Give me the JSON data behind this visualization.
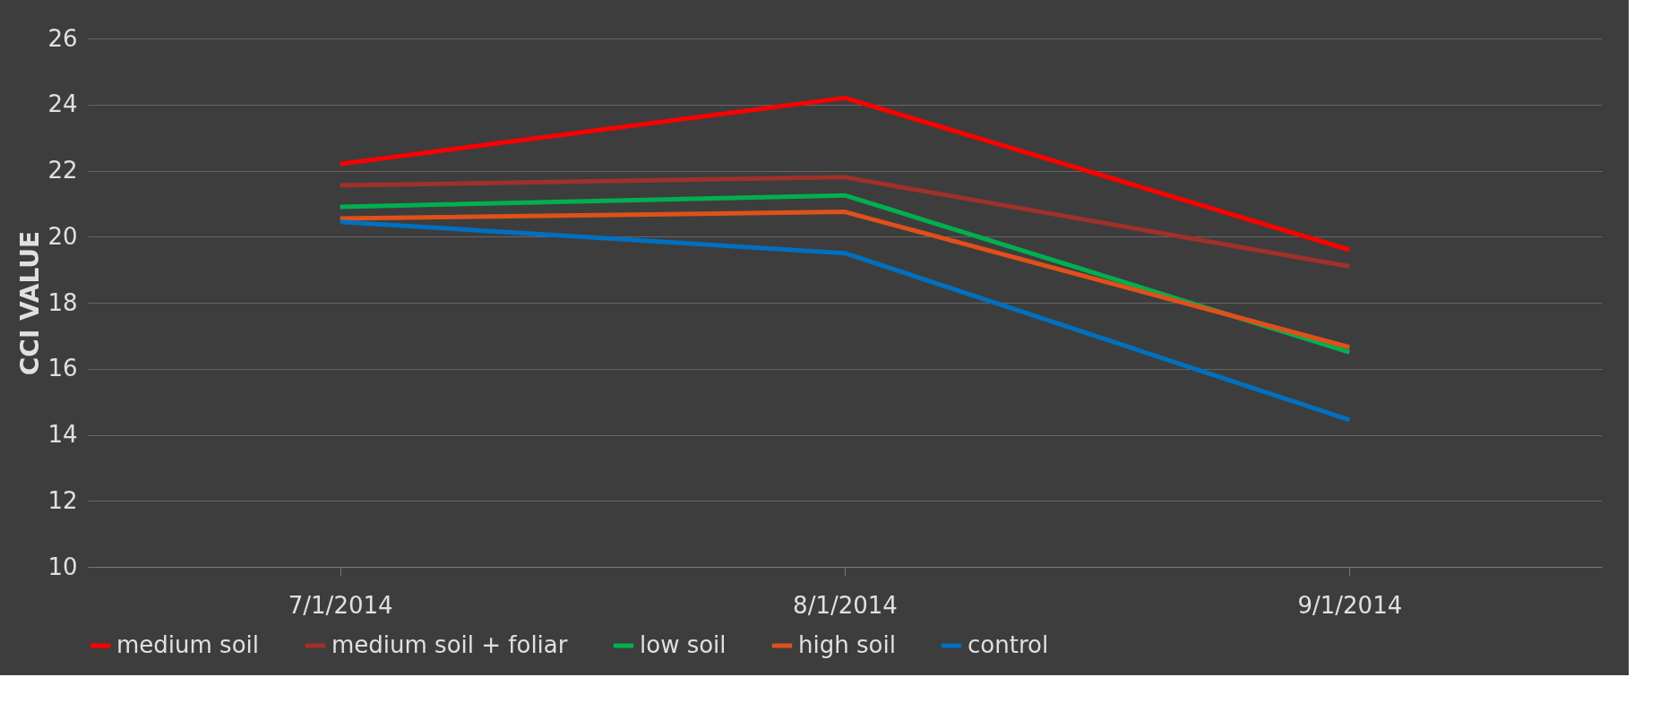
{
  "chart_data": {
    "type": "line",
    "ylabel": "CCI VALUE",
    "categories": [
      "7/1/2014",
      "8/1/2014",
      "9/1/2014"
    ],
    "series": [
      {
        "name": "medium soil",
        "color": "#ff0000",
        "values": [
          22.2,
          24.2,
          19.6
        ]
      },
      {
        "name": "medium soil + foliar",
        "color": "#a0302a",
        "values": [
          21.55,
          21.8,
          19.1
        ]
      },
      {
        "name": "low soil",
        "color": "#00b050",
        "values": [
          20.9,
          21.25,
          16.5
        ]
      },
      {
        "name": "high soil",
        "color": "#e0501a",
        "values": [
          20.55,
          20.75,
          16.65
        ]
      },
      {
        "name": "control",
        "color": "#0070c0",
        "values": [
          20.45,
          19.5,
          14.45
        ]
      }
    ],
    "ylim": [
      10,
      26
    ],
    "yticks": [
      10,
      12,
      14,
      16,
      18,
      20,
      22,
      24,
      26
    ],
    "grid": "y",
    "legend": "bottom",
    "marker": "none",
    "line_style": "solid"
  }
}
